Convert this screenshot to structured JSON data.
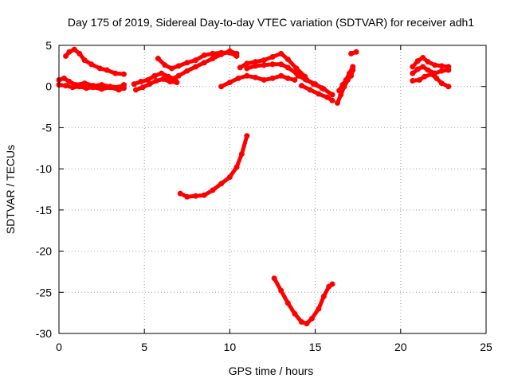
{
  "chart_data": {
    "type": "scatter",
    "title": "Day 175 of 2019, Sidereal Day-to-day VTEC variation (SDTVAR) for receiver adh1",
    "xlabel": "GPS time / hours",
    "ylabel": "SDTVAR / TECUs",
    "xlim": [
      0,
      25
    ],
    "ylim": [
      -30,
      5
    ],
    "xticks": [
      0,
      5,
      10,
      15,
      20,
      25
    ],
    "yticks": [
      5,
      0,
      -5,
      -10,
      -15,
      -20,
      -25,
      -30
    ],
    "grid": true,
    "color": "#ff0000",
    "series": [
      {
        "values": [
          [
            0.0,
            0.8
          ],
          [
            0.3,
            1.0
          ],
          [
            0.6,
            0.6
          ],
          [
            1.0,
            0.2
          ],
          [
            1.5,
            0.4
          ],
          [
            2.0,
            0.1
          ],
          [
            2.5,
            0.2
          ],
          [
            3.0,
            0.0
          ],
          [
            3.5,
            -0.1
          ],
          [
            3.8,
            0.2
          ]
        ]
      },
      {
        "values": [
          [
            0.0,
            0.2
          ],
          [
            0.4,
            0.1
          ],
          [
            0.8,
            -0.1
          ],
          [
            1.2,
            0.0
          ],
          [
            1.6,
            -0.2
          ],
          [
            2.0,
            -0.1
          ],
          [
            2.5,
            -0.3
          ],
          [
            3.0,
            -0.1
          ],
          [
            3.5,
            -0.4
          ],
          [
            3.8,
            -0.2
          ]
        ]
      },
      {
        "values": [
          [
            0.4,
            3.7
          ],
          [
            0.6,
            4.2
          ],
          [
            0.9,
            4.5
          ],
          [
            1.2,
            4.0
          ],
          [
            1.5,
            3.2
          ],
          [
            1.9,
            2.7
          ],
          [
            2.4,
            2.2
          ],
          [
            2.8,
            2.0
          ],
          [
            3.3,
            1.6
          ],
          [
            3.8,
            1.5
          ]
        ]
      },
      {
        "values": [
          [
            4.4,
            0.3
          ],
          [
            4.8,
            0.6
          ],
          [
            5.2,
            0.8
          ],
          [
            5.6,
            1.3
          ],
          [
            6.0,
            1.6
          ],
          [
            6.4,
            1.2
          ],
          [
            6.8,
            0.9
          ]
        ]
      },
      {
        "values": [
          [
            4.5,
            -0.4
          ],
          [
            4.9,
            -0.1
          ],
          [
            5.3,
            0.3
          ],
          [
            5.7,
            0.7
          ],
          [
            6.1,
            0.9
          ],
          [
            6.5,
            0.6
          ],
          [
            6.9,
            0.5
          ]
        ]
      },
      {
        "values": [
          [
            5.8,
            3.4
          ],
          [
            6.2,
            2.6
          ],
          [
            6.6,
            2.2
          ],
          [
            7.0,
            2.5
          ],
          [
            7.5,
            2.9
          ],
          [
            8.0,
            3.2
          ],
          [
            8.5,
            3.8
          ],
          [
            9.0,
            4.0
          ],
          [
            9.5,
            4.1
          ],
          [
            10.0,
            4.1
          ],
          [
            10.4,
            3.7
          ]
        ]
      },
      {
        "values": [
          [
            6.5,
            0.8
          ],
          [
            7.0,
            1.3
          ],
          [
            7.5,
            1.9
          ],
          [
            8.0,
            2.4
          ],
          [
            8.5,
            2.9
          ],
          [
            9.0,
            3.4
          ],
          [
            9.5,
            3.9
          ],
          [
            10.0,
            4.3
          ],
          [
            10.4,
            4.0
          ]
        ]
      },
      {
        "values": [
          [
            10.6,
            2.3
          ],
          [
            11.0,
            2.8
          ],
          [
            11.5,
            3.0
          ],
          [
            12.0,
            3.2
          ],
          [
            12.5,
            3.6
          ],
          [
            13.0,
            4.0
          ],
          [
            13.4,
            3.3
          ],
          [
            13.9,
            2.2
          ],
          [
            14.4,
            1.2
          ]
        ]
      },
      {
        "values": [
          [
            11.0,
            2.2
          ],
          [
            11.5,
            2.5
          ],
          [
            12.0,
            2.6
          ],
          [
            12.5,
            2.7
          ],
          [
            13.0,
            2.7
          ],
          [
            13.4,
            2.3
          ],
          [
            13.9,
            1.6
          ],
          [
            14.4,
            0.9
          ],
          [
            14.9,
            0.3
          ],
          [
            15.4,
            -0.2
          ]
        ]
      },
      {
        "values": [
          [
            9.5,
            0.0
          ],
          [
            10.0,
            0.5
          ],
          [
            10.5,
            1.0
          ],
          [
            11.0,
            1.3
          ],
          [
            11.5,
            1.1
          ],
          [
            12.0,
            0.8
          ],
          [
            12.5,
            1.0
          ],
          [
            13.0,
            1.3
          ],
          [
            13.4,
            1.0
          ],
          [
            13.8,
            0.8
          ]
        ]
      },
      {
        "values": [
          [
            14.0,
            1.3
          ],
          [
            14.5,
            0.8
          ],
          [
            15.0,
            0.3
          ],
          [
            15.5,
            -0.3
          ],
          [
            16.0,
            -1.0
          ]
        ]
      },
      {
        "values": [
          [
            14.2,
            0.1
          ],
          [
            14.7,
            -0.4
          ],
          [
            15.2,
            -0.9
          ],
          [
            15.7,
            -1.3
          ],
          [
            16.0,
            -1.7
          ]
        ]
      },
      {
        "values": [
          [
            16.3,
            -2.0
          ],
          [
            16.5,
            -1.0
          ],
          [
            16.7,
            0.0
          ],
          [
            16.9,
            0.8
          ],
          [
            17.1,
            1.3
          ],
          [
            17.2,
            2.0
          ]
        ]
      },
      {
        "values": [
          [
            16.4,
            -0.5
          ],
          [
            16.6,
            0.2
          ],
          [
            16.8,
            0.8
          ],
          [
            17.0,
            1.6
          ],
          [
            17.2,
            2.4
          ]
        ]
      },
      {
        "values": [
          [
            17.1,
            4.0
          ],
          [
            17.4,
            4.2
          ]
        ]
      },
      {
        "values": [
          [
            20.7,
            2.4
          ],
          [
            21.0,
            3.1
          ],
          [
            21.3,
            3.5
          ],
          [
            21.6,
            3.0
          ],
          [
            22.0,
            2.6
          ],
          [
            22.4,
            2.5
          ],
          [
            22.8,
            2.4
          ]
        ]
      },
      {
        "values": [
          [
            20.7,
            1.6
          ],
          [
            21.0,
            2.1
          ],
          [
            21.3,
            2.4
          ],
          [
            21.6,
            2.0
          ],
          [
            22.0,
            1.6
          ],
          [
            22.4,
            1.9
          ],
          [
            22.8,
            2.0
          ]
        ]
      },
      {
        "values": [
          [
            20.7,
            0.7
          ],
          [
            21.1,
            0.8
          ],
          [
            21.4,
            1.2
          ],
          [
            21.8,
            1.5
          ],
          [
            22.1,
            1.0
          ],
          [
            22.4,
            0.4
          ],
          [
            22.8,
            0.0
          ]
        ]
      },
      {
        "values": [
          [
            7.1,
            -13.0
          ],
          [
            7.5,
            -13.4
          ],
          [
            8.0,
            -13.3
          ],
          [
            8.5,
            -13.2
          ],
          [
            9.0,
            -12.6
          ],
          [
            9.5,
            -11.8
          ],
          [
            10.0,
            -11.0
          ],
          [
            10.4,
            -9.8
          ],
          [
            10.7,
            -8.2
          ],
          [
            11.0,
            -6.0
          ]
        ]
      },
      {
        "values": [
          [
            12.6,
            -23.3
          ],
          [
            13.0,
            -24.8
          ],
          [
            13.4,
            -26.3
          ],
          [
            13.8,
            -27.6
          ],
          [
            14.2,
            -28.6
          ],
          [
            14.5,
            -28.8
          ],
          [
            14.8,
            -28.2
          ],
          [
            15.2,
            -27.0
          ],
          [
            15.5,
            -25.5
          ],
          [
            15.8,
            -24.3
          ],
          [
            16.0,
            -24.0
          ]
        ]
      }
    ]
  }
}
